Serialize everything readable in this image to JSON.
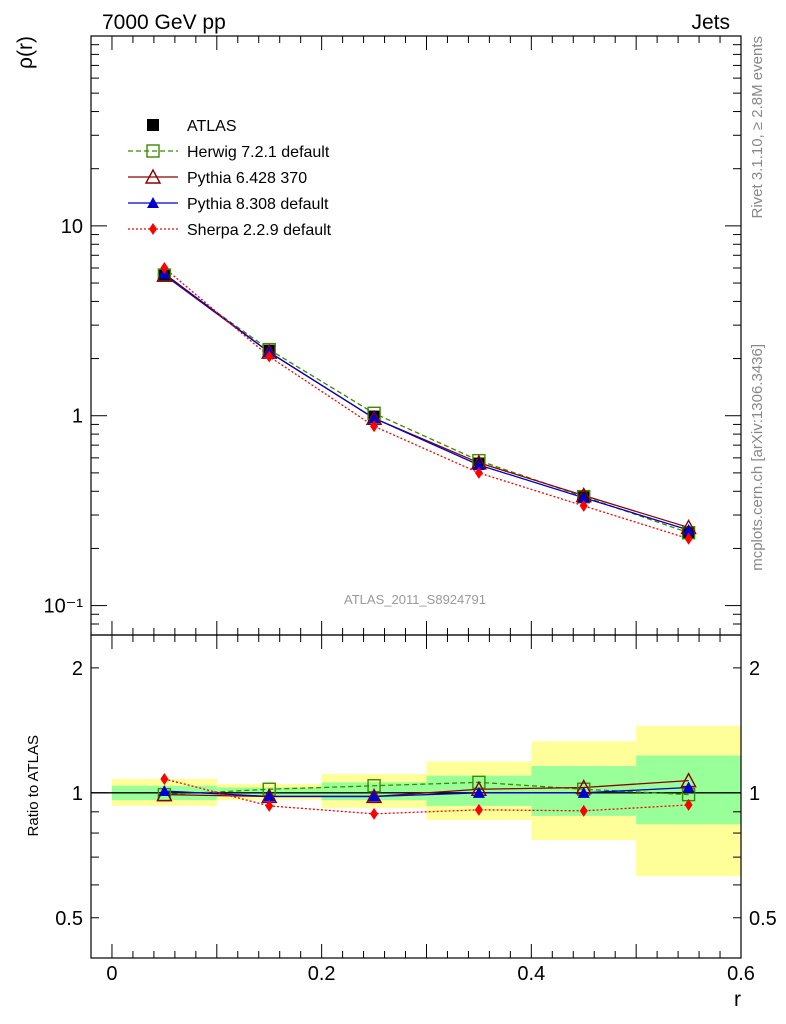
{
  "header": {
    "left": "7000 GeV pp",
    "right": "Jets"
  },
  "side_labels": {
    "rivet": "Rivet 3.1.10, ≥ 2.8M events",
    "mcplots": "mcplots.cern.ch [arXiv:1306.3436]"
  },
  "watermark": "ATLAS_2011_S8924791",
  "chart_data": [
    {
      "type": "line",
      "ylabel": "ρ(r)",
      "xlabel": "",
      "xlim": [
        -0.02,
        0.6
      ],
      "ylim": [
        0.07,
        100
      ],
      "yscale": "log",
      "yticks": [
        "10⁻¹",
        "1",
        "10"
      ],
      "legend_placement": "top-left",
      "x": [
        0.05,
        0.15,
        0.25,
        0.35,
        0.45,
        0.55
      ],
      "series": [
        {
          "name": "ATLAS",
          "values": [
            5.55,
            2.2,
            0.99,
            0.56,
            0.372,
            0.242
          ],
          "color": "#000000",
          "marker": "filled-square",
          "line": "none"
        },
        {
          "name": "Herwig 7.2.1 default",
          "values": [
            5.5,
            2.23,
            1.03,
            0.58,
            0.375,
            0.242
          ],
          "color": "#3a8a00",
          "marker": "open-square",
          "line": "dashed"
        },
        {
          "name": "Pythia 6.428 370",
          "values": [
            5.5,
            2.16,
            0.97,
            0.565,
            0.38,
            0.258
          ],
          "color": "#8b0000",
          "marker": "open-triangle",
          "line": "solid"
        },
        {
          "name": "Pythia 8.308 default",
          "values": [
            5.6,
            2.16,
            0.97,
            0.55,
            0.37,
            0.25
          ],
          "color": "#0000cc",
          "marker": "filled-triangle",
          "line": "solid"
        },
        {
          "name": "Sherpa 2.2.9 default",
          "values": [
            6.0,
            2.05,
            0.88,
            0.5,
            0.335,
            0.225
          ],
          "color": "#ff0000",
          "marker": "filled-diamond",
          "line": "dotted"
        }
      ]
    },
    {
      "type": "line",
      "ylabel": "Ratio to ATLAS",
      "xlabel": "r",
      "xlim": [
        -0.02,
        0.6
      ],
      "ylim": [
        0.4,
        2.4
      ],
      "yscale": "log",
      "yticks": [
        "0.5",
        "1",
        "2"
      ],
      "xticks": [
        "0",
        "0.2",
        "0.4",
        "0.6"
      ],
      "bins": [
        [
          0.0,
          0.1
        ],
        [
          0.1,
          0.2
        ],
        [
          0.2,
          0.3
        ],
        [
          0.3,
          0.4
        ],
        [
          0.4,
          0.5
        ],
        [
          0.5,
          0.6
        ]
      ],
      "band_yellow": [
        [
          0.93,
          1.08
        ],
        [
          0.96,
          1.05
        ],
        [
          0.92,
          1.11
        ],
        [
          0.86,
          1.19
        ],
        [
          0.77,
          1.33
        ],
        [
          0.63,
          1.45
        ]
      ],
      "band_green": [
        [
          0.96,
          1.04
        ],
        [
          0.98,
          1.03
        ],
        [
          0.96,
          1.06
        ],
        [
          0.93,
          1.1
        ],
        [
          0.88,
          1.16
        ],
        [
          0.84,
          1.23
        ]
      ],
      "x": [
        0.05,
        0.15,
        0.25,
        0.35,
        0.45,
        0.55
      ],
      "series": [
        {
          "name": "Herwig 7.2.1 default",
          "values": [
            0.99,
            1.02,
            1.04,
            1.06,
            1.02,
            0.99
          ],
          "color": "#3a8a00",
          "marker": "open-square",
          "line": "dashed"
        },
        {
          "name": "Pythia 6.428 370",
          "values": [
            0.99,
            0.98,
            0.98,
            1.02,
            1.03,
            1.07
          ],
          "color": "#8b0000",
          "marker": "open-triangle",
          "line": "solid"
        },
        {
          "name": "Pythia 8.308 default",
          "values": [
            1.01,
            0.98,
            0.98,
            1.0,
            1.0,
            1.03
          ],
          "color": "#0000cc",
          "marker": "filled-triangle",
          "line": "solid"
        },
        {
          "name": "Sherpa 2.2.9 default",
          "values": [
            1.08,
            0.93,
            0.89,
            0.91,
            0.905,
            0.935
          ],
          "color": "#ff0000",
          "marker": "filled-diamond",
          "line": "dotted"
        }
      ]
    }
  ]
}
